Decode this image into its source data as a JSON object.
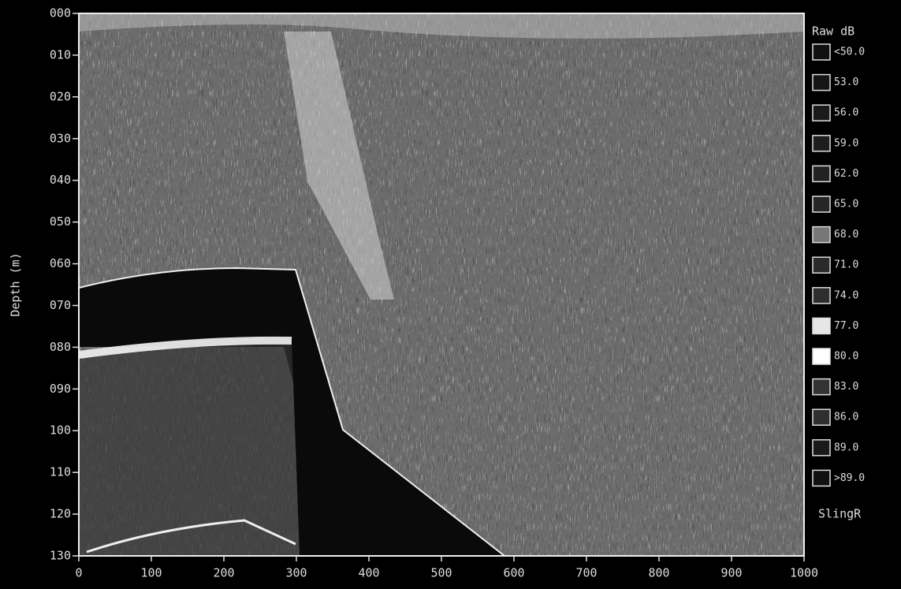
{
  "chart_data": {
    "type": "echogram",
    "ylabel": "Depth (m)",
    "legend_title": "Raw dB",
    "annotation": "SlingR",
    "xlim": [
      0,
      1000
    ],
    "xticks": [
      0,
      100,
      200,
      300,
      400,
      500,
      600,
      700,
      800,
      900,
      1000
    ],
    "ylim": [
      0,
      130
    ],
    "y_reversed": true,
    "yticks": [
      {
        "value": 0,
        "label": "000"
      },
      {
        "value": 10,
        "label": "010"
      },
      {
        "value": 20,
        "label": "020"
      },
      {
        "value": 30,
        "label": "030"
      },
      {
        "value": 40,
        "label": "040"
      },
      {
        "value": 50,
        "label": "050"
      },
      {
        "value": 60,
        "label": "060"
      },
      {
        "value": 70,
        "label": "070"
      },
      {
        "value": 80,
        "label": "080"
      },
      {
        "value": 90,
        "label": "090"
      },
      100,
      110,
      120,
      130
    ],
    "series": [
      {
        "name": "<50.0",
        "color": "#111111"
      },
      {
        "name": "53.0",
        "color": "#151515"
      },
      {
        "name": "56.0",
        "color": "#1a1a1a"
      },
      {
        "name": "59.0",
        "color": "#1e1e1e"
      },
      {
        "name": "62.0",
        "color": "#222222"
      },
      {
        "name": "65.0",
        "color": "#262626"
      },
      {
        "name": "68.0",
        "color": "#777777"
      },
      {
        "name": "71.0",
        "color": "#2a2a2a"
      },
      {
        "name": "74.0",
        "color": "#2e2e2e"
      },
      {
        "name": "77.0",
        "color": "#e6e6e6"
      },
      {
        "name": "80.0",
        "color": "#ffffff"
      },
      {
        "name": "83.0",
        "color": "#333333"
      },
      {
        "name": "86.0",
        "color": "#2f2f2f"
      },
      {
        "name": "89.0",
        "color": "#1a1a1a"
      },
      {
        "name": ">89.0",
        "color": "#111111"
      }
    ]
  }
}
